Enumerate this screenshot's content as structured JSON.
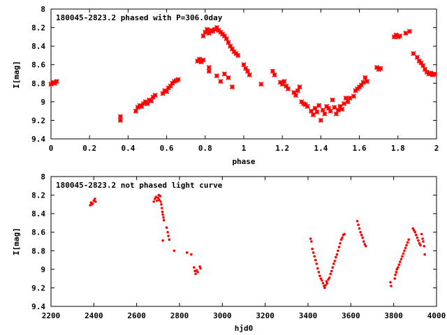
{
  "chart_data": [
    {
      "type": "scatter",
      "title": "180045-2823.2 phased with P=306.0day",
      "xlabel": "phase",
      "ylabel": "I[mag]",
      "xlim": [
        0,
        2
      ],
      "ylim": [
        9.4,
        8.0
      ],
      "y_inverted": true,
      "x_ticks": [
        "0",
        "0.2",
        "0.4",
        "0.6",
        "0.8",
        "1",
        "1.2",
        "1.4",
        "1.6",
        "1.8",
        "2"
      ],
      "y_ticks": [
        "8",
        "8.2",
        "8.4",
        "8.6",
        "8.8",
        "9",
        "9.2",
        "9.4"
      ],
      "marker": "cross",
      "color": "#ff0000",
      "grid": false,
      "series": [
        {
          "points": [
            [
              0.0,
              8.81
            ],
            [
              0.01,
              8.79
            ],
            [
              0.02,
              8.8
            ],
            [
              0.03,
              8.78
            ],
            [
              0.36,
              9.16
            ],
            [
              0.36,
              9.2
            ],
            [
              0.44,
              9.1
            ],
            [
              0.45,
              9.06
            ],
            [
              0.46,
              9.04
            ],
            [
              0.47,
              9.05
            ],
            [
              0.48,
              9.02
            ],
            [
              0.49,
              9.0
            ],
            [
              0.5,
              9.02
            ],
            [
              0.51,
              8.98
            ],
            [
              0.52,
              8.99
            ],
            [
              0.53,
              8.95
            ],
            [
              0.54,
              8.93
            ],
            [
              0.58,
              8.91
            ],
            [
              0.59,
              8.88
            ],
            [
              0.6,
              8.89
            ],
            [
              0.61,
              8.85
            ],
            [
              0.62,
              8.83
            ],
            [
              0.63,
              8.8
            ],
            [
              0.64,
              8.78
            ],
            [
              0.65,
              8.77
            ],
            [
              0.66,
              8.76
            ],
            [
              0.76,
              8.56
            ],
            [
              0.77,
              8.54
            ],
            [
              0.78,
              8.57
            ],
            [
              0.79,
              8.55
            ],
            [
              0.79,
              8.29
            ],
            [
              0.8,
              8.25
            ],
            [
              0.81,
              8.22
            ],
            [
              0.82,
              8.26
            ],
            [
              0.83,
              8.23
            ],
            [
              0.84,
              8.24
            ],
            [
              0.85,
              8.22
            ],
            [
              0.86,
              8.2
            ],
            [
              0.87,
              8.23
            ],
            [
              0.88,
              8.25
            ],
            [
              0.89,
              8.27
            ],
            [
              0.9,
              8.29
            ],
            [
              0.91,
              8.32
            ],
            [
              0.92,
              8.36
            ],
            [
              0.93,
              8.4
            ],
            [
              0.94,
              8.43
            ],
            [
              0.95,
              8.46
            ],
            [
              0.96,
              8.48
            ],
            [
              0.97,
              8.5
            ],
            [
              0.82,
              8.63
            ],
            [
              0.82,
              8.67
            ],
            [
              0.86,
              8.72
            ],
            [
              0.88,
              8.78
            ],
            [
              0.9,
              8.7
            ],
            [
              0.92,
              8.74
            ],
            [
              0.94,
              8.84
            ],
            [
              1.0,
              8.6
            ],
            [
              1.01,
              8.64
            ],
            [
              1.02,
              8.67
            ],
            [
              1.03,
              8.71
            ],
            [
              1.09,
              8.81
            ],
            [
              1.15,
              8.67
            ],
            [
              1.16,
              8.71
            ],
            [
              1.19,
              8.79
            ],
            [
              1.2,
              8.81
            ],
            [
              1.21,
              8.78
            ],
            [
              1.22,
              8.83
            ],
            [
              1.23,
              8.86
            ],
            [
              1.26,
              8.9
            ],
            [
              1.27,
              8.93
            ],
            [
              1.28,
              8.88
            ],
            [
              1.29,
              8.84
            ],
            [
              1.3,
              9.0
            ],
            [
              1.31,
              9.02
            ],
            [
              1.32,
              9.03
            ],
            [
              1.33,
              9.05
            ],
            [
              1.35,
              9.1
            ],
            [
              1.36,
              9.14
            ],
            [
              1.37,
              9.07
            ],
            [
              1.38,
              9.11
            ],
            [
              1.39,
              9.04
            ],
            [
              1.4,
              9.2
            ],
            [
              1.41,
              9.09
            ],
            [
              1.42,
              9.13
            ],
            [
              1.43,
              9.05
            ],
            [
              1.44,
              9.07
            ],
            [
              1.45,
              9.1
            ],
            [
              1.46,
              8.98
            ],
            [
              1.47,
              9.06
            ],
            [
              1.48,
              9.13
            ],
            [
              1.49,
              9.09
            ],
            [
              1.5,
              9.05
            ],
            [
              1.51,
              9.08
            ],
            [
              1.52,
              9.02
            ],
            [
              1.53,
              8.96
            ],
            [
              1.54,
              9.0
            ],
            [
              1.55,
              8.96
            ],
            [
              1.57,
              8.94
            ],
            [
              1.58,
              8.88
            ],
            [
              1.59,
              8.86
            ],
            [
              1.6,
              8.84
            ],
            [
              1.61,
              8.82
            ],
            [
              1.62,
              8.79
            ],
            [
              1.63,
              8.74
            ],
            [
              1.64,
              8.78
            ],
            [
              1.69,
              8.63
            ],
            [
              1.7,
              8.65
            ],
            [
              1.71,
              8.64
            ],
            [
              1.78,
              8.3
            ],
            [
              1.79,
              8.28
            ],
            [
              1.8,
              8.3
            ],
            [
              1.81,
              8.29
            ],
            [
              1.84,
              8.26
            ],
            [
              1.86,
              8.24
            ],
            [
              1.88,
              8.48
            ],
            [
              1.9,
              8.52
            ],
            [
              1.91,
              8.56
            ],
            [
              1.92,
              8.58
            ],
            [
              1.93,
              8.61
            ],
            [
              1.94,
              8.65
            ],
            [
              1.95,
              8.68
            ],
            [
              1.96,
              8.7
            ],
            [
              1.97,
              8.69
            ],
            [
              1.98,
              8.71
            ],
            [
              1.99,
              8.7
            ]
          ]
        }
      ]
    },
    {
      "type": "scatter",
      "title": "180045-2823.2 not phased light curve",
      "xlabel": "hjd0",
      "ylabel": "I[mag]",
      "xlim": [
        2200,
        4000
      ],
      "ylim": [
        9.4,
        8.0
      ],
      "y_inverted": true,
      "x_ticks": [
        "2200",
        "2400",
        "2600",
        "2800",
        "3000",
        "3200",
        "3400",
        "3600",
        "3800",
        "4000"
      ],
      "y_ticks": [
        "8",
        "8.2",
        "8.4",
        "8.6",
        "8.8",
        "9",
        "9.2",
        "9.4"
      ],
      "marker": "dot",
      "color": "#ff0000",
      "grid": false,
      "series": [
        {
          "points": [
            [
              2383,
              8.31
            ],
            [
              2387,
              8.28
            ],
            [
              2390,
              8.3
            ],
            [
              2395,
              8.29
            ],
            [
              2400,
              8.26
            ],
            [
              2405,
              8.24
            ],
            [
              2408,
              8.27
            ],
            [
              2680,
              8.27
            ],
            [
              2685,
              8.24
            ],
            [
              2690,
              8.22
            ],
            [
              2695,
              8.26
            ],
            [
              2700,
              8.23
            ],
            [
              2703,
              8.2
            ],
            [
              2705,
              8.25
            ],
            [
              2710,
              8.21
            ],
            [
              2712,
              8.27
            ],
            [
              2715,
              8.3
            ],
            [
              2718,
              8.34
            ],
            [
              2720,
              8.38
            ],
            [
              2722,
              8.41
            ],
            [
              2725,
              8.44
            ],
            [
              2727,
              8.47
            ],
            [
              2722,
              8.69
            ],
            [
              2740,
              8.55
            ],
            [
              2745,
              8.6
            ],
            [
              2748,
              8.64
            ],
            [
              2752,
              8.68
            ],
            [
              2775,
              8.8
            ],
            [
              2835,
              8.82
            ],
            [
              2855,
              8.84
            ],
            [
              2868,
              8.98
            ],
            [
              2872,
              9.02
            ],
            [
              2875,
              9.05
            ],
            [
              2880,
              9.01
            ],
            [
              2885,
              9.03
            ],
            [
              2895,
              8.97
            ],
            [
              2898,
              8.99
            ],
            [
              3412,
              8.67
            ],
            [
              3416,
              8.7
            ],
            [
              3420,
              8.78
            ],
            [
              3425,
              8.82
            ],
            [
              3430,
              8.86
            ],
            [
              3435,
              8.9
            ],
            [
              3440,
              8.94
            ],
            [
              3445,
              8.99
            ],
            [
              3450,
              9.03
            ],
            [
              3455,
              9.07
            ],
            [
              3460,
              9.1
            ],
            [
              3465,
              9.12
            ],
            [
              3470,
              9.15
            ],
            [
              3475,
              9.18
            ],
            [
              3478,
              9.2
            ],
            [
              3482,
              9.17
            ],
            [
              3486,
              9.13
            ],
            [
              3490,
              9.15
            ],
            [
              3495,
              9.11
            ],
            [
              3500,
              9.09
            ],
            [
              3505,
              9.05
            ],
            [
              3510,
              9.02
            ],
            [
              3515,
              8.98
            ],
            [
              3520,
              8.94
            ],
            [
              3525,
              8.91
            ],
            [
              3530,
              8.87
            ],
            [
              3535,
              8.84
            ],
            [
              3540,
              8.8
            ],
            [
              3545,
              8.76
            ],
            [
              3550,
              8.72
            ],
            [
              3555,
              8.68
            ],
            [
              3560,
              8.66
            ],
            [
              3565,
              8.63
            ],
            [
              3570,
              8.62
            ],
            [
              3630,
              8.48
            ],
            [
              3635,
              8.52
            ],
            [
              3640,
              8.56
            ],
            [
              3645,
              8.6
            ],
            [
              3650,
              8.63
            ],
            [
              3655,
              8.66
            ],
            [
              3660,
              8.7
            ],
            [
              3665,
              8.73
            ],
            [
              3670,
              8.75
            ],
            [
              3785,
              9.14
            ],
            [
              3788,
              9.18
            ],
            [
              3805,
              9.1
            ],
            [
              3808,
              9.06
            ],
            [
              3812,
              9.03
            ],
            [
              3815,
              9.0
            ],
            [
              3820,
              8.98
            ],
            [
              3825,
              8.95
            ],
            [
              3830,
              8.92
            ],
            [
              3835,
              8.89
            ],
            [
              3840,
              8.86
            ],
            [
              3845,
              8.83
            ],
            [
              3850,
              8.8
            ],
            [
              3855,
              8.77
            ],
            [
              3860,
              8.74
            ],
            [
              3865,
              8.71
            ],
            [
              3870,
              8.68
            ],
            [
              3890,
              8.56
            ],
            [
              3895,
              8.58
            ],
            [
              3900,
              8.6
            ],
            [
              3905,
              8.63
            ],
            [
              3910,
              8.66
            ],
            [
              3915,
              8.69
            ],
            [
              3920,
              8.72
            ],
            [
              3925,
              8.74
            ],
            [
              3930,
              8.62
            ],
            [
              3935,
              8.67
            ],
            [
              3938,
              8.7
            ],
            [
              3942,
              8.75
            ],
            [
              3945,
              8.84
            ]
          ]
        }
      ]
    }
  ]
}
